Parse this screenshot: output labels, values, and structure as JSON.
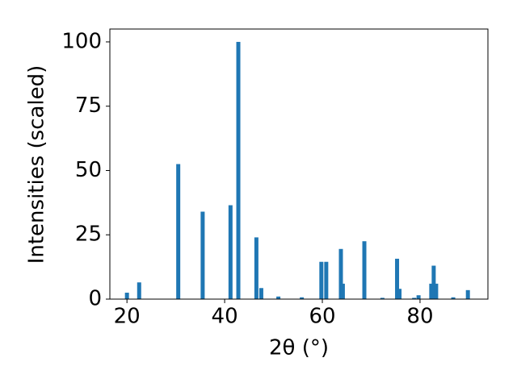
{
  "chart_data": {
    "type": "bar",
    "x_label": "2θ (°)",
    "y_label": "Intensities (scaled)",
    "x": [
      20,
      22.5,
      30.5,
      35.5,
      41.2,
      42.8,
      46.5,
      47.5,
      51,
      55.8,
      59.8,
      60.8,
      63.8,
      64.2,
      68.6,
      72.3,
      75.3,
      75.8,
      78.8,
      79.7,
      82.3,
      82.8,
      83.3,
      86.8,
      89.8
    ],
    "values": [
      2.5,
      6.5,
      52.5,
      34,
      36.5,
      100,
      24,
      4.3,
      1,
      0.7,
      14.5,
      14.5,
      19.5,
      6,
      22.5,
      0.5,
      15.7,
      4,
      0.5,
      1.5,
      6,
      13,
      6,
      0.7,
      3.5
    ],
    "color": "#1f77b4",
    "xlim": [
      16.5,
      93.9
    ],
    "xticks": [
      20,
      40,
      60,
      80
    ],
    "ylim": [
      0,
      105
    ],
    "yticks": [
      0,
      25,
      50,
      75,
      100
    ]
  }
}
